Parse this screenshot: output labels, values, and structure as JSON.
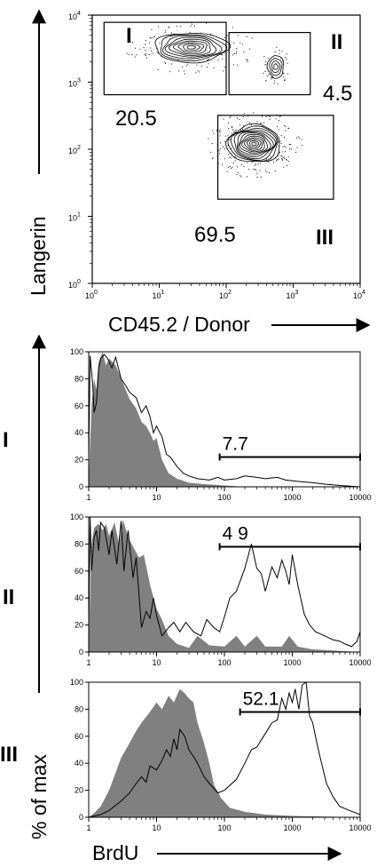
{
  "chart_data": [
    {
      "type": "scatter",
      "subtype": "flow-cytometry contour plot",
      "xlabel": "CD45.2 / Donor",
      "ylabel": "Langerin",
      "x_scale": "log",
      "y_scale": "log",
      "xlim": [
        1,
        10000
      ],
      "ylim": [
        1,
        10000
      ],
      "x_ticks": [
        "10",
        "10",
        "10",
        "10",
        "10"
      ],
      "x_tick_exponents": [
        "0",
        "1",
        "2",
        "3",
        "4"
      ],
      "y_ticks": [
        "10",
        "10",
        "10",
        "10",
        "10"
      ],
      "y_tick_exponents": [
        "0",
        "1",
        "2",
        "3",
        "4"
      ],
      "gates": [
        {
          "label": "I",
          "value": "20.5",
          "x_range": [
            1.5,
            100
          ],
          "y_range": [
            650,
            7800
          ]
        },
        {
          "label": "II",
          "value": "4.5",
          "x_range": [
            110,
            1800
          ],
          "y_range": [
            650,
            5500
          ]
        },
        {
          "label": "III",
          "value": "69.5",
          "x_range": [
            75,
            4000
          ],
          "y_range": [
            18,
            320
          ]
        }
      ],
      "populations": [
        {
          "name": "I",
          "center": [
            30,
            3300
          ],
          "spread": [
            0.55,
            0.22
          ],
          "levels": 9
        },
        {
          "name": "II",
          "center": [
            550,
            1700
          ],
          "spread": [
            0.12,
            0.17
          ],
          "levels": 4
        },
        {
          "name": "III",
          "center": [
            260,
            120
          ],
          "spread": [
            0.4,
            0.28
          ],
          "levels": 12
        }
      ]
    },
    {
      "type": "area",
      "subtype": "histogram overlay",
      "panel": "I",
      "gate_value": "7.7",
      "gate_range": [
        85,
        10000
      ],
      "gate_level": 22,
      "xlim": [
        1,
        10000
      ],
      "x_scale": "log",
      "ylim": [
        0,
        100
      ],
      "x_ticks": [
        "1",
        "10",
        "100",
        "1000",
        "10000"
      ],
      "y_ticks": [
        "0",
        "20",
        "40",
        "60",
        "80",
        "100"
      ],
      "filled": [
        [
          1,
          5
        ],
        [
          1.1,
          60
        ],
        [
          1.2,
          80
        ],
        [
          1.3,
          72
        ],
        [
          1.4,
          92
        ],
        [
          1.6,
          100
        ],
        [
          1.8,
          90
        ],
        [
          2,
          95
        ],
        [
          2.5,
          90
        ],
        [
          3,
          80
        ],
        [
          3.5,
          72
        ],
        [
          4,
          65
        ],
        [
          5,
          58
        ],
        [
          6,
          48
        ],
        [
          7,
          45
        ],
        [
          8,
          40
        ],
        [
          9,
          34
        ],
        [
          10,
          36
        ],
        [
          12,
          20
        ],
        [
          15,
          10
        ],
        [
          20,
          6
        ],
        [
          30,
          3
        ],
        [
          50,
          2
        ],
        [
          100,
          1
        ],
        [
          200,
          0
        ]
      ],
      "open": [
        [
          1,
          20
        ],
        [
          1.05,
          97
        ],
        [
          1.15,
          75
        ],
        [
          1.2,
          55
        ],
        [
          1.3,
          62
        ],
        [
          1.4,
          88
        ],
        [
          1.5,
          95
        ],
        [
          1.7,
          98
        ],
        [
          1.9,
          95
        ],
        [
          2.2,
          88
        ],
        [
          2.5,
          96
        ],
        [
          3,
          80
        ],
        [
          3.5,
          75
        ],
        [
          4,
          70
        ],
        [
          5,
          66
        ],
        [
          6,
          55
        ],
        [
          7,
          60
        ],
        [
          8,
          52
        ],
        [
          9,
          40
        ],
        [
          10,
          45
        ],
        [
          12,
          37
        ],
        [
          14,
          24
        ],
        [
          16,
          22
        ],
        [
          20,
          15
        ],
        [
          25,
          10
        ],
        [
          30,
          8
        ],
        [
          40,
          6
        ],
        [
          60,
          5
        ],
        [
          80,
          7
        ],
        [
          100,
          5
        ],
        [
          150,
          6
        ],
        [
          200,
          8
        ],
        [
          300,
          7
        ],
        [
          400,
          6
        ],
        [
          600,
          7
        ],
        [
          800,
          5
        ],
        [
          1200,
          4
        ],
        [
          2000,
          3
        ],
        [
          3000,
          2
        ],
        [
          5000,
          1
        ],
        [
          10000,
          0
        ]
      ]
    },
    {
      "type": "area",
      "subtype": "histogram overlay",
      "panel": "II",
      "gate_value": "4 9",
      "gate_range": [
        85,
        10000
      ],
      "gate_level": 78,
      "xlim": [
        1,
        10000
      ],
      "x_scale": "log",
      "ylim": [
        0,
        100
      ],
      "x_ticks": [
        "1",
        "10",
        "100",
        "1000",
        "10000"
      ],
      "y_ticks": [
        "0",
        "20",
        "40",
        "60",
        "80",
        "100"
      ],
      "filled": [
        [
          1,
          5
        ],
        [
          1.1,
          80
        ],
        [
          1.2,
          92
        ],
        [
          1.4,
          95
        ],
        [
          1.6,
          90
        ],
        [
          1.8,
          95
        ],
        [
          2,
          86
        ],
        [
          2.4,
          96
        ],
        [
          2.8,
          80
        ],
        [
          3.2,
          98
        ],
        [
          3.8,
          85
        ],
        [
          4.5,
          78
        ],
        [
          5.5,
          70
        ],
        [
          6.5,
          72
        ],
        [
          8,
          50
        ],
        [
          10,
          32
        ],
        [
          12,
          24
        ],
        [
          15,
          12
        ],
        [
          20,
          6
        ],
        [
          30,
          3
        ],
        [
          40,
          12
        ],
        [
          60,
          5
        ],
        [
          100,
          4
        ],
        [
          150,
          12
        ],
        [
          200,
          4
        ],
        [
          300,
          12
        ],
        [
          400,
          4
        ],
        [
          700,
          4
        ],
        [
          900,
          12
        ],
        [
          1200,
          4
        ],
        [
          2000,
          2
        ],
        [
          10000,
          0
        ]
      ],
      "open": [
        [
          1,
          15
        ],
        [
          1.05,
          100
        ],
        [
          1.1,
          60
        ],
        [
          1.2,
          85
        ],
        [
          1.3,
          90
        ],
        [
          1.4,
          75
        ],
        [
          1.5,
          96
        ],
        [
          1.7,
          92
        ],
        [
          2,
          72
        ],
        [
          2.2,
          90
        ],
        [
          2.6,
          65
        ],
        [
          3,
          97
        ],
        [
          3.3,
          60
        ],
        [
          3.8,
          90
        ],
        [
          4.5,
          55
        ],
        [
          5,
          70
        ],
        [
          6,
          18
        ],
        [
          7,
          30
        ],
        [
          8,
          25
        ],
        [
          9,
          40
        ],
        [
          10,
          27
        ],
        [
          12,
          12
        ],
        [
          15,
          18
        ],
        [
          18,
          22
        ],
        [
          22,
          15
        ],
        [
          27,
          22
        ],
        [
          35,
          15
        ],
        [
          45,
          12
        ],
        [
          55,
          24
        ],
        [
          70,
          18
        ],
        [
          85,
          15
        ],
        [
          100,
          26
        ],
        [
          120,
          40
        ],
        [
          150,
          45
        ],
        [
          200,
          62
        ],
        [
          250,
          80
        ],
        [
          300,
          62
        ],
        [
          350,
          58
        ],
        [
          400,
          45
        ],
        [
          500,
          63
        ],
        [
          600,
          55
        ],
        [
          700,
          68
        ],
        [
          800,
          60
        ],
        [
          900,
          50
        ],
        [
          1000,
          72
        ],
        [
          1200,
          50
        ],
        [
          1500,
          28
        ],
        [
          1800,
          20
        ],
        [
          2200,
          15
        ],
        [
          3000,
          12
        ],
        [
          4000,
          9
        ],
        [
          5000,
          8
        ],
        [
          6000,
          6
        ],
        [
          7500,
          4
        ],
        [
          9000,
          8
        ],
        [
          10000,
          15
        ]
      ]
    },
    {
      "type": "area",
      "subtype": "histogram overlay",
      "panel": "III",
      "gate_value": "52.1",
      "gate_range": [
        170,
        10000
      ],
      "gate_level": 78,
      "xlim": [
        1,
        10000
      ],
      "x_scale": "log",
      "ylim": [
        0,
        100
      ],
      "x_ticks": [
        "1",
        "10",
        "100",
        "1000",
        "10000"
      ],
      "y_ticks": [
        "0",
        "20",
        "40",
        "60",
        "80",
        "100"
      ],
      "filled": [
        [
          1,
          0
        ],
        [
          1.2,
          3
        ],
        [
          1.5,
          8
        ],
        [
          2,
          20
        ],
        [
          2.5,
          33
        ],
        [
          3,
          44
        ],
        [
          4,
          55
        ],
        [
          5,
          64
        ],
        [
          6,
          70
        ],
        [
          8,
          78
        ],
        [
          10,
          85
        ],
        [
          12,
          80
        ],
        [
          15,
          90
        ],
        [
          18,
          85
        ],
        [
          22,
          95
        ],
        [
          26,
          92
        ],
        [
          30,
          88
        ],
        [
          35,
          85
        ],
        [
          40,
          70
        ],
        [
          50,
          55
        ],
        [
          60,
          40
        ],
        [
          70,
          24
        ],
        [
          90,
          14
        ],
        [
          120,
          7
        ],
        [
          200,
          4
        ],
        [
          400,
          2
        ],
        [
          1000,
          1
        ],
        [
          10000,
          0
        ]
      ],
      "open": [
        [
          1,
          0
        ],
        [
          1.5,
          2
        ],
        [
          2,
          5
        ],
        [
          3,
          12
        ],
        [
          4,
          18
        ],
        [
          5,
          25
        ],
        [
          6,
          30
        ],
        [
          7,
          26
        ],
        [
          8,
          38
        ],
        [
          10,
          35
        ],
        [
          12,
          42
        ],
        [
          14,
          50
        ],
        [
          16,
          45
        ],
        [
          18,
          58
        ],
        [
          20,
          50
        ],
        [
          22,
          65
        ],
        [
          26,
          60
        ],
        [
          30,
          50
        ],
        [
          35,
          45
        ],
        [
          40,
          40
        ],
        [
          50,
          30
        ],
        [
          60,
          25
        ],
        [
          80,
          18
        ],
        [
          100,
          20
        ],
        [
          150,
          28
        ],
        [
          200,
          40
        ],
        [
          250,
          50
        ],
        [
          300,
          52
        ],
        [
          400,
          62
        ],
        [
          500,
          70
        ],
        [
          600,
          72
        ],
        [
          700,
          88
        ],
        [
          800,
          80
        ],
        [
          900,
          92
        ],
        [
          1000,
          85
        ],
        [
          1100,
          95
        ],
        [
          1250,
          80
        ],
        [
          1400,
          98
        ],
        [
          1600,
          100
        ],
        [
          1800,
          75
        ],
        [
          2000,
          70
        ],
        [
          2300,
          55
        ],
        [
          2700,
          40
        ],
        [
          3200,
          25
        ],
        [
          4000,
          15
        ],
        [
          5000,
          8
        ],
        [
          7000,
          5
        ],
        [
          10000,
          2
        ]
      ]
    }
  ],
  "labels": {
    "panel_I": "I",
    "panel_II": "II",
    "panel_III": "III",
    "hist_ylabel": "% of max",
    "hist_xlabel": "BrdU"
  }
}
